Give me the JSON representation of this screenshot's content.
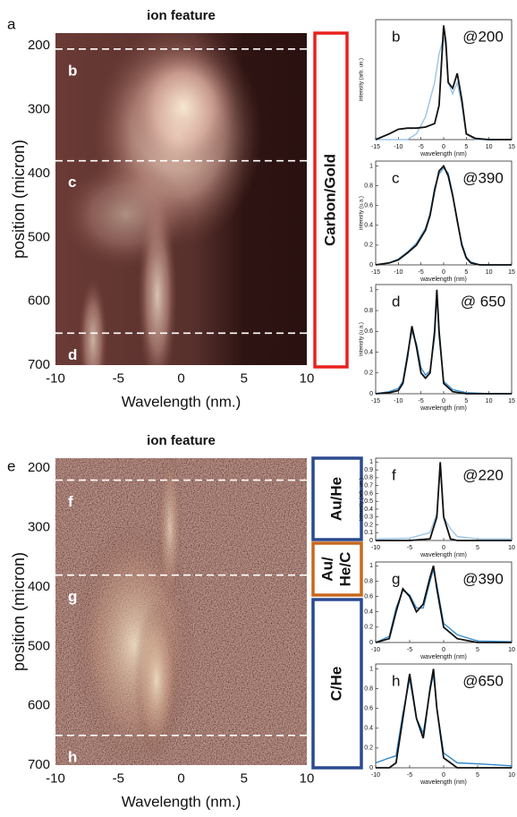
{
  "panels": [
    "a",
    "e"
  ],
  "chart_data": [
    {
      "type": "heatmap",
      "title": "ion feature",
      "xlabel": "Wavelength (nm.)",
      "ylabel": "position (micron)",
      "xlim": [
        -10,
        10
      ],
      "xticks": [
        -10,
        -5,
        0,
        5,
        10
      ],
      "ylim": [
        180,
        700
      ],
      "yticks": [
        200,
        300,
        400,
        500,
        600,
        700
      ],
      "yaxis_reversed": true,
      "markers": [
        {
          "value": 205,
          "label": "b"
        },
        {
          "value": 380,
          "label": "c"
        },
        {
          "value": 650,
          "label": "d"
        }
      ],
      "regions": [
        {
          "lines": [
            "Carbon/Gold"
          ],
          "color": "#e8221e"
        }
      ]
    },
    {
      "type": "line",
      "xlabel": "wavelength (nm)",
      "ylabel": "intensity (arb. un.)",
      "annotation": "b",
      "tag": "@200",
      "xlim": [
        -15,
        15
      ],
      "xticks": [
        -15,
        -10,
        -5,
        0,
        5,
        10,
        15
      ],
      "ylim": [
        0,
        1.05
      ],
      "x": [
        -15,
        -12,
        -10,
        -8,
        -6,
        -4,
        -2,
        -1,
        0,
        0.5,
        1,
        2,
        3,
        4,
        5,
        7,
        10,
        15
      ],
      "series": [
        {
          "color": "#9cc4e4",
          "values": [
            0,
            0,
            0,
            0,
            0.05,
            0.2,
            0.5,
            0.75,
            0.9,
            0.8,
            0.5,
            0.4,
            0.5,
            0.3,
            0.05,
            0,
            0,
            0
          ]
        },
        {
          "color": "#111111",
          "values": [
            0,
            0.05,
            0.09,
            0.1,
            0.1,
            0.11,
            0.14,
            0.3,
            1.0,
            0.85,
            0.5,
            0.45,
            0.58,
            0.35,
            0.05,
            0.01,
            0,
            0
          ]
        }
      ]
    },
    {
      "type": "line",
      "xlabel": "wavelength (nm)",
      "ylabel": "intensity (u.a.)",
      "annotation": "c",
      "tag": "@390",
      "xlim": [
        -15,
        15
      ],
      "xticks": [
        -15,
        -10,
        -5,
        0,
        5,
        10,
        15
      ],
      "ylim": [
        0,
        1.05
      ],
      "yticks": [
        0,
        0.2,
        0.4,
        0.6,
        0.8,
        1
      ],
      "x": [
        -15,
        -12,
        -10,
        -8,
        -6,
        -4,
        -3,
        -2,
        -1,
        0,
        1,
        2,
        3,
        4,
        5,
        6,
        8,
        10,
        15
      ],
      "series": [
        {
          "color": "#5aa0d8",
          "values": [
            0,
            0.02,
            0.06,
            0.13,
            0.22,
            0.37,
            0.52,
            0.78,
            0.92,
            0.98,
            0.93,
            0.72,
            0.43,
            0.22,
            0.08,
            0.03,
            0,
            0,
            0
          ]
        },
        {
          "color": "#111111",
          "values": [
            0,
            0.02,
            0.05,
            0.12,
            0.2,
            0.35,
            0.5,
            0.75,
            0.95,
            1.0,
            0.9,
            0.7,
            0.45,
            0.2,
            0.07,
            0.02,
            0,
            0,
            0
          ]
        }
      ]
    },
    {
      "type": "line",
      "xlabel": "wavelength (nm)",
      "ylabel": "intensity (u.a.)",
      "annotation": "d",
      "tag": "@ 650",
      "xlim": [
        -15,
        15
      ],
      "xticks": [
        -15,
        -10,
        -5,
        0,
        5,
        10,
        15
      ],
      "ylim": [
        0,
        1.05
      ],
      "yticks": [
        0,
        0.2,
        0.4,
        0.6,
        0.8,
        1
      ],
      "x": [
        -15,
        -12,
        -10,
        -9,
        -8,
        -7,
        -6,
        -5,
        -4,
        -3,
        -2,
        -1.5,
        -1,
        0,
        2,
        5,
        10,
        15
      ],
      "series": [
        {
          "color": "#3a8fd0",
          "values": [
            0,
            0.02,
            0.05,
            0.12,
            0.38,
            0.6,
            0.48,
            0.25,
            0.18,
            0.22,
            0.55,
            0.95,
            0.55,
            0.12,
            0.04,
            0.01,
            0,
            0
          ]
        },
        {
          "color": "#111111",
          "values": [
            0,
            0.01,
            0.03,
            0.1,
            0.35,
            0.65,
            0.45,
            0.2,
            0.15,
            0.2,
            0.6,
            1,
            0.6,
            0.1,
            0.02,
            0,
            0,
            0
          ]
        }
      ]
    },
    {
      "type": "heatmap",
      "title": "ion feature",
      "xlabel": "Wavelength (nm.)",
      "ylabel": "position (micron)",
      "xlim": [
        -10,
        10
      ],
      "xticks": [
        -10,
        -5,
        0,
        5,
        10
      ],
      "ylim": [
        183,
        700
      ],
      "yticks": [
        200,
        300,
        400,
        500,
        600,
        700
      ],
      "yaxis_reversed": true,
      "markers": [
        {
          "value": 220,
          "label": "f"
        },
        {
          "value": 380,
          "label": "g"
        },
        {
          "value": 650,
          "label": "h"
        }
      ],
      "regions": [
        {
          "lines": [
            "Au/He"
          ],
          "color": "#2b4a8f"
        },
        {
          "lines": [
            "Au/",
            "He/C"
          ],
          "color": "#c8681e"
        },
        {
          "lines": [
            "C/He"
          ],
          "color": "#2b4a8f"
        }
      ]
    },
    {
      "type": "line",
      "xlabel": "wavelength (nm)",
      "ylabel": "intensity (arb. un.)",
      "annotation": "f",
      "tag": "@220",
      "xlim": [
        -10,
        10
      ],
      "xticks": [
        -10,
        -5,
        0,
        5,
        10
      ],
      "ylim": [
        0,
        1.05
      ],
      "yticks": [
        0,
        0.1,
        0.2,
        0.3,
        0.4,
        0.5,
        0.6,
        0.7,
        0.8,
        0.9,
        1
      ],
      "x": [
        -10,
        -5,
        -2,
        -1,
        -0.5,
        0,
        1,
        2,
        5,
        10
      ],
      "series": [
        {
          "color": "#9cc4e4",
          "values": [
            0.02,
            0.03,
            0.1,
            0.35,
            0.95,
            0.3,
            0.15,
            0.05,
            0.02,
            0.02
          ]
        },
        {
          "color": "#111111",
          "values": [
            0,
            0,
            0.02,
            0.3,
            1,
            0.3,
            0.02,
            0,
            0,
            0
          ]
        }
      ]
    },
    {
      "type": "line",
      "xlabel": "wavelength (nm)",
      "annotation": "g",
      "tag": "@390",
      "xlim": [
        -10,
        10
      ],
      "xticks": [
        -10,
        -5,
        0,
        5,
        10
      ],
      "ylim": [
        0,
        1.05
      ],
      "yticks": [
        0,
        0.2,
        0.4,
        0.6,
        0.8,
        1
      ],
      "x": [
        -10,
        -8,
        -7,
        -6,
        -5,
        -4,
        -3,
        -2,
        -1.5,
        -1,
        0,
        2,
        5,
        10
      ],
      "series": [
        {
          "color": "#3a8fd0",
          "values": [
            0,
            0.08,
            0.45,
            0.68,
            0.62,
            0.45,
            0.45,
            0.8,
            0.95,
            0.75,
            0.25,
            0.1,
            0.02,
            0.01
          ]
        },
        {
          "color": "#111111",
          "values": [
            0,
            0.05,
            0.4,
            0.7,
            0.6,
            0.4,
            0.5,
            0.85,
            1,
            0.7,
            0.2,
            0.05,
            0,
            0
          ]
        }
      ]
    },
    {
      "type": "line",
      "xlabel": "wavelength (nm)",
      "annotation": "h",
      "tag": "@650",
      "xlim": [
        -10,
        10
      ],
      "xticks": [
        -10,
        -5,
        0,
        5,
        10
      ],
      "ylim": [
        0,
        1.05
      ],
      "yticks": [
        0,
        0.2,
        0.4,
        0.6,
        0.8,
        1
      ],
      "x": [
        -10,
        -8,
        -7,
        -6,
        -5,
        -4,
        -3,
        -2,
        -1.5,
        -1,
        0,
        2,
        5,
        10
      ],
      "series": [
        {
          "color": "#2a86c8",
          "values": [
            0.05,
            0.1,
            0.12,
            0.55,
            0.9,
            0.5,
            0.35,
            0.78,
            0.95,
            0.6,
            0.15,
            0.05,
            0.04,
            0.02
          ]
        },
        {
          "color": "#111111",
          "values": [
            0,
            0,
            0.05,
            0.5,
            0.95,
            0.5,
            0.3,
            0.8,
            1,
            0.6,
            0.1,
            0,
            0,
            0
          ]
        }
      ]
    }
  ]
}
